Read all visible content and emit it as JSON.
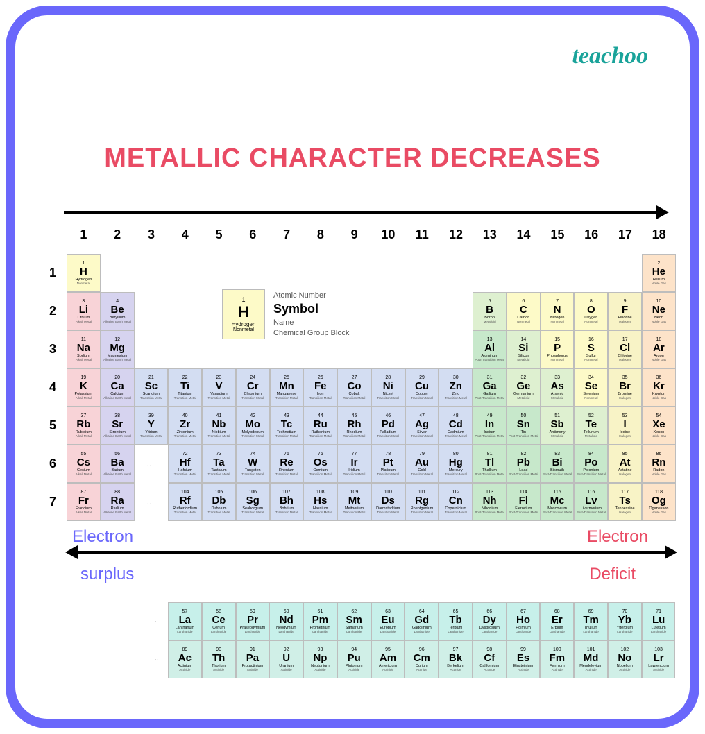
{
  "brand": "teachoo",
  "heading": "METALLIC CHARACTER DECREASES",
  "bottom_left_top": "Electron",
  "bottom_left_bot": "surplus",
  "bottom_right_top": "Electron",
  "bottom_right_bot": "Deficit",
  "legend": {
    "num": "1",
    "sym": "H",
    "name": "Hydrogen",
    "block": "Nonmetal",
    "l_num": "Atomic Number",
    "l_sym": "Symbol",
    "l_name": "Name",
    "l_block": "Chemical Group Block"
  },
  "colors": {
    "border": "#6a67fb",
    "heading": "#e94b64",
    "brand": "#1aa39a",
    "electron_surplus": "#6a67fb",
    "electron_deficit": "#e94b64",
    "Nonmetal": "#fdfac8",
    "Noble Gas": "#fde3c9",
    "Alkali Metal": "#f8d3d7",
    "Alkaline Earth Metal": "#d6d3ef",
    "Transition Metal": "#d3ddf2",
    "Post-Transition Metal": "#c7e8cb",
    "Metalloid": "#def0d0",
    "Halogen": "#f8f3c6",
    "Lanthanide": "#c7f0ea",
    "Actinide": "#d0efe7"
  },
  "group_headers": [
    "1",
    "2",
    "3",
    "4",
    "5",
    "6",
    "7",
    "8",
    "9",
    "10",
    "11",
    "12",
    "13",
    "14",
    "15",
    "16",
    "17",
    "18"
  ],
  "period_headers": [
    "1",
    "2",
    "3",
    "4",
    "5",
    "6",
    "7"
  ],
  "rows": [
    [
      {
        "n": "1",
        "s": "H",
        "m": "Hydrogen",
        "b": "Nonmetal"
      },
      null,
      null,
      null,
      null,
      null,
      null,
      null,
      null,
      null,
      null,
      null,
      null,
      null,
      null,
      null,
      null,
      {
        "n": "2",
        "s": "He",
        "m": "Helium",
        "b": "Noble Gas"
      }
    ],
    [
      {
        "n": "3",
        "s": "Li",
        "m": "Lithium",
        "b": "Alkali Metal"
      },
      {
        "n": "4",
        "s": "Be",
        "m": "Beryllium",
        "b": "Alkaline Earth Metal"
      },
      null,
      null,
      null,
      null,
      null,
      null,
      null,
      null,
      null,
      null,
      {
        "n": "5",
        "s": "B",
        "m": "Boron",
        "b": "Metalloid"
      },
      {
        "n": "6",
        "s": "C",
        "m": "Carbon",
        "b": "Nonmetal"
      },
      {
        "n": "7",
        "s": "N",
        "m": "Nitrogen",
        "b": "Nonmetal"
      },
      {
        "n": "8",
        "s": "O",
        "m": "Oxygen",
        "b": "Nonmetal"
      },
      {
        "n": "9",
        "s": "F",
        "m": "Fluorine",
        "b": "Halogen"
      },
      {
        "n": "10",
        "s": "Ne",
        "m": "Neon",
        "b": "Noble Gas"
      }
    ],
    [
      {
        "n": "11",
        "s": "Na",
        "m": "Sodium",
        "b": "Alkali Metal"
      },
      {
        "n": "12",
        "s": "Mg",
        "m": "Magnesium",
        "b": "Alkaline Earth Metal"
      },
      null,
      null,
      null,
      null,
      null,
      null,
      null,
      null,
      null,
      null,
      {
        "n": "13",
        "s": "Al",
        "m": "Aluminum",
        "b": "Post-Transition Metal"
      },
      {
        "n": "14",
        "s": "Si",
        "m": "Silicon",
        "b": "Metalloid"
      },
      {
        "n": "15",
        "s": "P",
        "m": "Phosphorus",
        "b": "Nonmetal"
      },
      {
        "n": "16",
        "s": "S",
        "m": "Sulfur",
        "b": "Nonmetal"
      },
      {
        "n": "17",
        "s": "Cl",
        "m": "Chlorine",
        "b": "Halogen"
      },
      {
        "n": "18",
        "s": "Ar",
        "m": "Argon",
        "b": "Noble Gas"
      }
    ],
    [
      {
        "n": "19",
        "s": "K",
        "m": "Potassium",
        "b": "Alkali Metal"
      },
      {
        "n": "20",
        "s": "Ca",
        "m": "Calcium",
        "b": "Alkaline Earth Metal"
      },
      {
        "n": "21",
        "s": "Sc",
        "m": "Scandium",
        "b": "Transition Metal"
      },
      {
        "n": "22",
        "s": "Ti",
        "m": "Titanium",
        "b": "Transition Metal"
      },
      {
        "n": "23",
        "s": "V",
        "m": "Vanadium",
        "b": "Transition Metal"
      },
      {
        "n": "24",
        "s": "Cr",
        "m": "Chromium",
        "b": "Transition Metal"
      },
      {
        "n": "25",
        "s": "Mn",
        "m": "Manganese",
        "b": "Transition Metal"
      },
      {
        "n": "26",
        "s": "Fe",
        "m": "Iron",
        "b": "Transition Metal"
      },
      {
        "n": "27",
        "s": "Co",
        "m": "Cobalt",
        "b": "Transition Metal"
      },
      {
        "n": "28",
        "s": "Ni",
        "m": "Nickel",
        "b": "Transition Metal"
      },
      {
        "n": "29",
        "s": "Cu",
        "m": "Copper",
        "b": "Transition Metal"
      },
      {
        "n": "30",
        "s": "Zn",
        "m": "Zinc",
        "b": "Transition Metal"
      },
      {
        "n": "31",
        "s": "Ga",
        "m": "Gallium",
        "b": "Post-Transition Metal"
      },
      {
        "n": "32",
        "s": "Ge",
        "m": "Germanium",
        "b": "Metalloid"
      },
      {
        "n": "33",
        "s": "As",
        "m": "Arsenic",
        "b": "Metalloid"
      },
      {
        "n": "34",
        "s": "Se",
        "m": "Selenium",
        "b": "Nonmetal"
      },
      {
        "n": "35",
        "s": "Br",
        "m": "Bromine",
        "b": "Halogen"
      },
      {
        "n": "36",
        "s": "Kr",
        "m": "Krypton",
        "b": "Noble Gas"
      }
    ],
    [
      {
        "n": "37",
        "s": "Rb",
        "m": "Rubidium",
        "b": "Alkali Metal"
      },
      {
        "n": "38",
        "s": "Sr",
        "m": "Strontium",
        "b": "Alkaline Earth Metal"
      },
      {
        "n": "39",
        "s": "Y",
        "m": "Yttrium",
        "b": "Transition Metal"
      },
      {
        "n": "40",
        "s": "Zr",
        "m": "Zirconium",
        "b": "Transition Metal"
      },
      {
        "n": "41",
        "s": "Nb",
        "m": "Niobium",
        "b": "Transition Metal"
      },
      {
        "n": "42",
        "s": "Mo",
        "m": "Molybdenum",
        "b": "Transition Metal"
      },
      {
        "n": "43",
        "s": "Tc",
        "m": "Technetium",
        "b": "Transition Metal"
      },
      {
        "n": "44",
        "s": "Ru",
        "m": "Ruthenium",
        "b": "Transition Metal"
      },
      {
        "n": "45",
        "s": "Rh",
        "m": "Rhodium",
        "b": "Transition Metal"
      },
      {
        "n": "46",
        "s": "Pd",
        "m": "Palladium",
        "b": "Transition Metal"
      },
      {
        "n": "47",
        "s": "Ag",
        "m": "Silver",
        "b": "Transition Metal"
      },
      {
        "n": "48",
        "s": "Cd",
        "m": "Cadmium",
        "b": "Transition Metal"
      },
      {
        "n": "49",
        "s": "In",
        "m": "Indium",
        "b": "Post-Transition Metal"
      },
      {
        "n": "50",
        "s": "Sn",
        "m": "Tin",
        "b": "Post-Transition Metal"
      },
      {
        "n": "51",
        "s": "Sb",
        "m": "Antimony",
        "b": "Metalloid"
      },
      {
        "n": "52",
        "s": "Te",
        "m": "Tellurium",
        "b": "Metalloid"
      },
      {
        "n": "53",
        "s": "I",
        "m": "Iodine",
        "b": "Halogen"
      },
      {
        "n": "54",
        "s": "Xe",
        "m": "Xenon",
        "b": "Noble Gas"
      }
    ],
    [
      {
        "n": "55",
        "s": "Cs",
        "m": "Cesium",
        "b": "Alkali Metal"
      },
      {
        "n": "56",
        "s": "Ba",
        "m": "Barium",
        "b": "Alkaline Earth Metal"
      },
      null,
      {
        "n": "72",
        "s": "Hf",
        "m": "Hafnium",
        "b": "Transition Metal"
      },
      {
        "n": "73",
        "s": "Ta",
        "m": "Tantalum",
        "b": "Transition Metal"
      },
      {
        "n": "74",
        "s": "W",
        "m": "Tungsten",
        "b": "Transition Metal"
      },
      {
        "n": "75",
        "s": "Re",
        "m": "Rhenium",
        "b": "Transition Metal"
      },
      {
        "n": "76",
        "s": "Os",
        "m": "Osmium",
        "b": "Transition Metal"
      },
      {
        "n": "77",
        "s": "Ir",
        "m": "Iridium",
        "b": "Transition Metal"
      },
      {
        "n": "78",
        "s": "Pt",
        "m": "Platinum",
        "b": "Transition Metal"
      },
      {
        "n": "79",
        "s": "Au",
        "m": "Gold",
        "b": "Transition Metal"
      },
      {
        "n": "80",
        "s": "Hg",
        "m": "Mercury",
        "b": "Transition Metal"
      },
      {
        "n": "81",
        "s": "Tl",
        "m": "Thallium",
        "b": "Post-Transition Metal"
      },
      {
        "n": "82",
        "s": "Pb",
        "m": "Lead",
        "b": "Post-Transition Metal"
      },
      {
        "n": "83",
        "s": "Bi",
        "m": "Bismuth",
        "b": "Post-Transition Metal"
      },
      {
        "n": "84",
        "s": "Po",
        "m": "Polonium",
        "b": "Post-Transition Metal"
      },
      {
        "n": "85",
        "s": "At",
        "m": "Astatine",
        "b": "Halogen"
      },
      {
        "n": "86",
        "s": "Rn",
        "m": "Radon",
        "b": "Noble Gas"
      }
    ],
    [
      {
        "n": "87",
        "s": "Fr",
        "m": "Francium",
        "b": "Alkali Metal"
      },
      {
        "n": "88",
        "s": "Ra",
        "m": "Radium",
        "b": "Alkaline Earth Metal"
      },
      null,
      {
        "n": "104",
        "s": "Rf",
        "m": "Rutherfordium",
        "b": "Transition Metal"
      },
      {
        "n": "105",
        "s": "Db",
        "m": "Dubnium",
        "b": "Transition Metal"
      },
      {
        "n": "106",
        "s": "Sg",
        "m": "Seaborgium",
        "b": "Transition Metal"
      },
      {
        "n": "107",
        "s": "Bh",
        "m": "Bohrium",
        "b": "Transition Metal"
      },
      {
        "n": "108",
        "s": "Hs",
        "m": "Hassium",
        "b": "Transition Metal"
      },
      {
        "n": "109",
        "s": "Mt",
        "m": "Meitnerium",
        "b": "Transition Metal"
      },
      {
        "n": "110",
        "s": "Ds",
        "m": "Darmstadtium",
        "b": "Transition Metal"
      },
      {
        "n": "111",
        "s": "Rg",
        "m": "Roentgenium",
        "b": "Transition Metal"
      },
      {
        "n": "112",
        "s": "Cn",
        "m": "Copernicium",
        "b": "Transition Metal"
      },
      {
        "n": "113",
        "s": "Nh",
        "m": "Nihonium",
        "b": "Post-Transition Metal"
      },
      {
        "n": "114",
        "s": "Fl",
        "m": "Flerovium",
        "b": "Post-Transition Metal"
      },
      {
        "n": "115",
        "s": "Mc",
        "m": "Moscovium",
        "b": "Post-Transition Metal"
      },
      {
        "n": "116",
        "s": "Lv",
        "m": "Livermorium",
        "b": "Post-Transition Metal"
      },
      {
        "n": "117",
        "s": "Ts",
        "m": "Tennessine",
        "b": "Halogen"
      },
      {
        "n": "118",
        "s": "Og",
        "m": "Oganesson",
        "b": "Noble Gas"
      }
    ]
  ],
  "fblock": [
    [
      {
        "n": "57",
        "s": "La",
        "m": "Lanthanum",
        "b": "Lanthanide"
      },
      {
        "n": "58",
        "s": "Ce",
        "m": "Cerium",
        "b": "Lanthanide"
      },
      {
        "n": "59",
        "s": "Pr",
        "m": "Praseodymium",
        "b": "Lanthanide"
      },
      {
        "n": "60",
        "s": "Nd",
        "m": "Neodymium",
        "b": "Lanthanide"
      },
      {
        "n": "61",
        "s": "Pm",
        "m": "Promethium",
        "b": "Lanthanide"
      },
      {
        "n": "62",
        "s": "Sm",
        "m": "Samarium",
        "b": "Lanthanide"
      },
      {
        "n": "63",
        "s": "Eu",
        "m": "Europium",
        "b": "Lanthanide"
      },
      {
        "n": "64",
        "s": "Gd",
        "m": "Gadolinium",
        "b": "Lanthanide"
      },
      {
        "n": "65",
        "s": "Tb",
        "m": "Terbium",
        "b": "Lanthanide"
      },
      {
        "n": "66",
        "s": "Dy",
        "m": "Dysprosium",
        "b": "Lanthanide"
      },
      {
        "n": "67",
        "s": "Ho",
        "m": "Holmium",
        "b": "Lanthanide"
      },
      {
        "n": "68",
        "s": "Er",
        "m": "Erbium",
        "b": "Lanthanide"
      },
      {
        "n": "69",
        "s": "Tm",
        "m": "Thulium",
        "b": "Lanthanide"
      },
      {
        "n": "70",
        "s": "Yb",
        "m": "Ytterbium",
        "b": "Lanthanide"
      },
      {
        "n": "71",
        "s": "Lu",
        "m": "Lutetium",
        "b": "Lanthanide"
      }
    ],
    [
      {
        "n": "89",
        "s": "Ac",
        "m": "Actinium",
        "b": "Actinide"
      },
      {
        "n": "90",
        "s": "Th",
        "m": "Thorium",
        "b": "Actinide"
      },
      {
        "n": "91",
        "s": "Pa",
        "m": "Protactinium",
        "b": "Actinide"
      },
      {
        "n": "92",
        "s": "U",
        "m": "Uranium",
        "b": "Actinide"
      },
      {
        "n": "93",
        "s": "Np",
        "m": "Neptunium",
        "b": "Actinide"
      },
      {
        "n": "94",
        "s": "Pu",
        "m": "Plutonium",
        "b": "Actinide"
      },
      {
        "n": "95",
        "s": "Am",
        "m": "Americium",
        "b": "Actinide"
      },
      {
        "n": "96",
        "s": "Cm",
        "m": "Curium",
        "b": "Actinide"
      },
      {
        "n": "97",
        "s": "Bk",
        "m": "Berkelium",
        "b": "Actinide"
      },
      {
        "n": "98",
        "s": "Cf",
        "m": "Californium",
        "b": "Actinide"
      },
      {
        "n": "99",
        "s": "Es",
        "m": "Einsteinium",
        "b": "Actinide"
      },
      {
        "n": "100",
        "s": "Fm",
        "m": "Fermium",
        "b": "Actinide"
      },
      {
        "n": "101",
        "s": "Md",
        "m": "Mendelevium",
        "b": "Actinide"
      },
      {
        "n": "102",
        "s": "No",
        "m": "Nobelium",
        "b": "Actinide"
      },
      {
        "n": "103",
        "s": "Lr",
        "m": "Lawrencium",
        "b": "Actinide"
      }
    ]
  ]
}
